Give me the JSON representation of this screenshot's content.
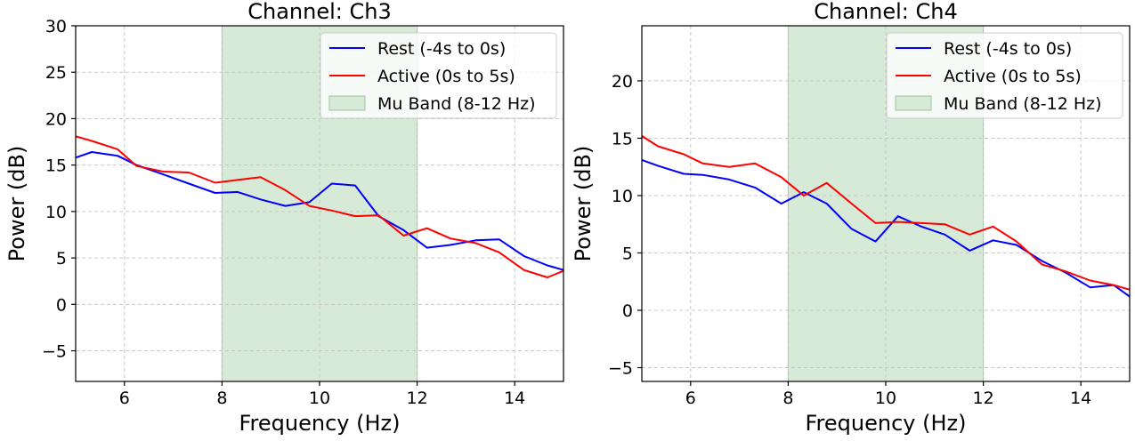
{
  "chart_data": [
    {
      "type": "line",
      "title": "Channel: Ch3",
      "xlabel": "Frequency (Hz)",
      "ylabel": "Power (dB)",
      "xlim": [
        5,
        15
      ],
      "ylim": [
        -8.3,
        30
      ],
      "xticks": [
        "6",
        "8",
        "10",
        "12",
        "14"
      ],
      "yticks": [
        "−5",
        "0",
        "5",
        "10",
        "15",
        "20",
        "25",
        "30"
      ],
      "grid": true,
      "legend_position": "upper right",
      "band": {
        "label": "Mu Band (8-12 Hz)",
        "start": 8,
        "end": 12,
        "color": "#d7ead7"
      },
      "x": [
        5.0,
        5.33,
        5.86,
        6.25,
        6.79,
        7.32,
        7.86,
        8.32,
        8.79,
        9.3,
        9.79,
        10.25,
        10.73,
        11.21,
        11.72,
        12.2,
        12.68,
        13.2,
        13.68,
        14.19,
        14.67,
        15.0
      ],
      "series": [
        {
          "name": "Rest (-4s to 0s)",
          "color": "#0000ff",
          "values": [
            15.8,
            16.4,
            16.0,
            15.0,
            14.0,
            13.0,
            12.0,
            12.1,
            11.3,
            10.6,
            11.0,
            13.0,
            12.8,
            9.5,
            8.0,
            6.1,
            6.4,
            6.9,
            7.0,
            5.2,
            4.2,
            3.7
          ]
        },
        {
          "name": "Active (0s to 5s)",
          "color": "#ff0000",
          "values": [
            18.1,
            17.6,
            16.7,
            14.9,
            14.3,
            14.2,
            13.1,
            13.4,
            13.7,
            12.3,
            10.6,
            10.1,
            9.5,
            9.6,
            7.4,
            8.2,
            7.1,
            6.6,
            5.6,
            3.7,
            2.9,
            3.6
          ]
        }
      ]
    },
    {
      "type": "line",
      "title": "Channel: Ch4",
      "xlabel": "Frequency (Hz)",
      "ylabel": "Power (dB)",
      "xlim": [
        5,
        15
      ],
      "ylim": [
        -6.2,
        24.8
      ],
      "xticks": [
        "6",
        "8",
        "10",
        "12",
        "14"
      ],
      "yticks": [
        "−5",
        "0",
        "5",
        "10",
        "15",
        "20"
      ],
      "grid": true,
      "legend_position": "upper right",
      "band": {
        "label": "Mu Band (8-12 Hz)",
        "start": 8,
        "end": 12,
        "color": "#d7ead7"
      },
      "x": [
        5.0,
        5.33,
        5.86,
        6.25,
        6.79,
        7.32,
        7.86,
        8.32,
        8.79,
        9.3,
        9.79,
        10.25,
        10.73,
        11.21,
        11.72,
        12.2,
        12.68,
        13.2,
        13.68,
        14.19,
        14.67,
        15.0
      ],
      "series": [
        {
          "name": "Rest (-4s to 0s)",
          "color": "#0000ff",
          "values": [
            13.1,
            12.6,
            11.9,
            11.8,
            11.4,
            10.7,
            9.3,
            10.3,
            9.3,
            7.1,
            6.0,
            8.2,
            7.3,
            6.6,
            5.2,
            6.1,
            5.7,
            4.3,
            3.3,
            2.0,
            2.2,
            1.2
          ]
        },
        {
          "name": "Active (0s to 5s)",
          "color": "#ff0000",
          "values": [
            15.2,
            14.3,
            13.6,
            12.8,
            12.5,
            12.8,
            11.6,
            10.0,
            11.1,
            9.3,
            7.6,
            7.7,
            7.6,
            7.5,
            6.6,
            7.3,
            6.0,
            4.0,
            3.4,
            2.6,
            2.2,
            1.8
          ]
        }
      ]
    }
  ]
}
